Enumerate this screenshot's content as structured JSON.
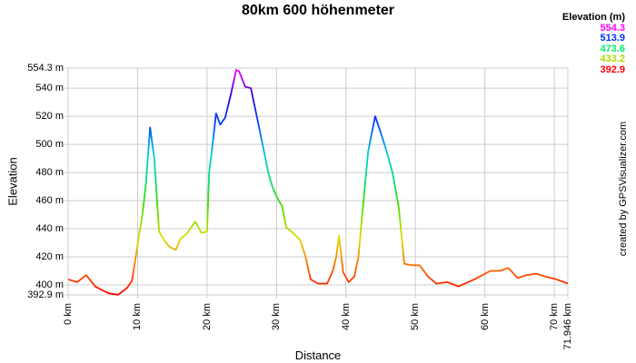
{
  "header": {
    "title": "80km 600 höhenmeter"
  },
  "legend": {
    "title": "Elevation (m)",
    "items": [
      {
        "label": "554.3",
        "color": "#ff00ff"
      },
      {
        "label": "513.9",
        "color": "#0033ff"
      },
      {
        "label": "473.6",
        "color": "#00ee66"
      },
      {
        "label": "433.2",
        "color": "#aadd00"
      },
      {
        "label": "392.9",
        "color": "#ff0000"
      }
    ]
  },
  "credit": "created by GPSVisualizer.com",
  "axes": {
    "ylabel": "Elevation",
    "xlabel": "Distance",
    "yticks": [
      "554.3 m",
      "540 m",
      "520 m",
      "500 m",
      "480 m",
      "460 m",
      "440 m",
      "420 m",
      "400 m",
      "392.9 m"
    ],
    "xticks": [
      "0 km",
      "10 km",
      "20 km",
      "30 km",
      "40 km",
      "50 km",
      "60 km",
      "70 km",
      "71.946 km"
    ]
  },
  "chart_data": {
    "type": "line",
    "title": "80km 600 höhenmeter",
    "xlabel": "Distance",
    "ylabel": "Elevation",
    "x_unit": "km",
    "y_unit": "m",
    "xlim": [
      0,
      71.946
    ],
    "ylim": [
      392.9,
      554.3
    ],
    "grid": true,
    "legend_position": "top-right",
    "legend_title": "Elevation (m)",
    "legend_entries": [
      "554.3",
      "513.9",
      "473.6",
      "433.2",
      "392.9"
    ],
    "color_scale": "elevation gradient red(low) → yellow → green → cyan → blue → magenta(high)",
    "x_ticks": [
      0,
      10,
      20,
      30,
      40,
      50,
      60,
      70,
      71.946
    ],
    "y_ticks": [
      392.9,
      400,
      420,
      440,
      460,
      480,
      500,
      520,
      540,
      554.3
    ],
    "series": [
      {
        "name": "Elevation",
        "x": [
          0,
          1.3,
          2.6,
          3.9,
          5.0,
          5.9,
          7.2,
          8.5,
          9.2,
          9.8,
          10.3,
          10.7,
          11.2,
          11.8,
          12.4,
          13.1,
          13.8,
          14.6,
          15.5,
          16.2,
          17.0,
          18.3,
          19.2,
          20.0,
          20.3,
          20.8,
          21.3,
          21.9,
          22.6,
          23.4,
          24.2,
          24.6,
          25.5,
          26.3,
          27.5,
          28.2,
          28.8,
          29.4,
          30.1,
          30.8,
          31.4,
          32.4,
          33.4,
          34.2,
          34.9,
          36.0,
          37.3,
          38.1,
          38.6,
          39.0,
          39.6,
          40.4,
          41.2,
          41.8,
          42.3,
          43.2,
          44.2,
          44.9,
          45.8,
          46.7,
          47.6,
          48.4,
          49.5,
          50.6,
          51.8,
          53.0,
          54.6,
          56.2,
          58.5,
          60.8,
          62.1,
          63.4,
          64.7,
          66.0,
          67.4,
          68.7,
          70.3,
          71.946
        ],
        "y": [
          404,
          402,
          407,
          399,
          396,
          394,
          393,
          398,
          403,
          422,
          438,
          450,
          472,
          512,
          490,
          438,
          432,
          427,
          425,
          433,
          436,
          445,
          437,
          438,
          480,
          500,
          522,
          514,
          519,
          535,
          553,
          552,
          541,
          540,
          512,
          495,
          480,
          470,
          462,
          456,
          441,
          437,
          432,
          420,
          404,
          401,
          401,
          410,
          420,
          435,
          409,
          402,
          406,
          420,
          448,
          495,
          520,
          510,
          496,
          480,
          455,
          415,
          414,
          414,
          406,
          401,
          402,
          399,
          404,
          410,
          410,
          412,
          405,
          407,
          408,
          406,
          404,
          401
        ]
      }
    ]
  }
}
